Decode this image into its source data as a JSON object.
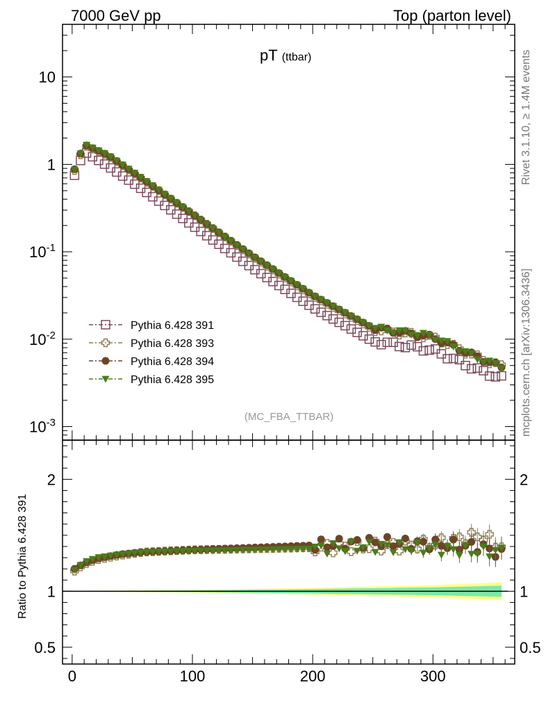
{
  "header": {
    "left": "7000 GeV pp",
    "right": "Top (parton level)"
  },
  "side_text": {
    "rivet": "Rivet 3.1.10, ≥ 1.4M events",
    "mcplots": "mcplots.cern.ch [arXiv:1306.3436]"
  },
  "chart_data": [
    {
      "type": "line",
      "title": "pT",
      "title_sub": "(ttbar)",
      "watermark": "(MC_FBA_TTBAR)",
      "xlim": [
        -8,
        368
      ],
      "ylim": [
        0.0007,
        40
      ],
      "yscale": "log",
      "y_tick_labels": [
        "10^-3",
        "10^-2",
        "10^-1",
        "1",
        "10"
      ],
      "legend_placement": "lower-left",
      "colors": {
        "391": "#7b4a5e",
        "393": "#8f7b52",
        "394": "#6b4528",
        "395": "#4c7c1a"
      },
      "series": [
        {
          "name": "Pythia 6.428 391",
          "marker": "open-square",
          "x": [
            2,
            10,
            30,
            60,
            100,
            150,
            200,
            250,
            300,
            340,
            357
          ],
          "y": [
            0.75,
            1.4,
            0.95,
            0.5,
            0.2,
            0.065,
            0.023,
            0.0095,
            0.0075,
            0.0043,
            0.0036
          ]
        },
        {
          "name": "Pythia 6.428 393",
          "marker": "open-cross",
          "x": [
            2,
            10,
            30,
            60,
            100,
            150,
            200,
            250,
            300,
            340,
            357
          ],
          "y": [
            0.85,
            1.65,
            1.25,
            0.65,
            0.27,
            0.088,
            0.031,
            0.013,
            0.0105,
            0.006,
            0.0049
          ]
        },
        {
          "name": "Pythia 6.428 394",
          "marker": "filled-circle",
          "x": [
            2,
            10,
            30,
            60,
            100,
            150,
            200,
            250,
            300,
            340,
            357
          ],
          "y": [
            0.88,
            1.7,
            1.27,
            0.66,
            0.27,
            0.09,
            0.032,
            0.0135,
            0.0105,
            0.006,
            0.0048
          ]
        },
        {
          "name": "Pythia 6.428 395",
          "marker": "filled-triangle-down",
          "x": [
            2,
            10,
            30,
            60,
            100,
            150,
            200,
            250,
            300,
            340,
            357
          ],
          "y": [
            0.87,
            1.72,
            1.28,
            0.67,
            0.27,
            0.089,
            0.032,
            0.0135,
            0.0108,
            0.0058,
            0.0049
          ]
        }
      ]
    },
    {
      "type": "line",
      "ylabel": "Ratio to Pythia 6.428 391",
      "xlim": [
        -8,
        368
      ],
      "ylim": [
        0.35,
        2.35
      ],
      "x_ticks": [
        0,
        100,
        200,
        300
      ],
      "y_ticks": [
        0.5,
        1,
        2
      ],
      "reference": 1,
      "band_outer_color": "#ffff88",
      "band_inner_color": "#7fe8a8",
      "band": {
        "x": [
          0,
          100,
          200,
          300,
          357
        ],
        "outer_half_width": [
          0.003,
          0.012,
          0.03,
          0.055,
          0.08
        ],
        "inner_half_width": [
          0.002,
          0.008,
          0.02,
          0.035,
          0.05
        ]
      },
      "series": [
        {
          "name": "Pythia 6.428 393",
          "x": [
            2,
            10,
            20,
            40,
            60,
            100,
            150,
            200,
            250,
            300,
            340,
            357
          ],
          "y": [
            1.18,
            1.24,
            1.28,
            1.32,
            1.35,
            1.37,
            1.38,
            1.39,
            1.4,
            1.42,
            1.5,
            1.4
          ]
        },
        {
          "name": "Pythia 6.428 394",
          "x": [
            2,
            10,
            20,
            40,
            60,
            100,
            150,
            200,
            250,
            300,
            340,
            357
          ],
          "y": [
            1.2,
            1.25,
            1.29,
            1.33,
            1.35,
            1.37,
            1.39,
            1.41,
            1.44,
            1.42,
            1.4,
            1.33
          ]
        },
        {
          "name": "Pythia 6.428 395",
          "x": [
            2,
            10,
            20,
            40,
            60,
            100,
            150,
            200,
            250,
            300,
            340,
            357
          ],
          "y": [
            1.19,
            1.26,
            1.3,
            1.33,
            1.35,
            1.36,
            1.37,
            1.38,
            1.4,
            1.38,
            1.35,
            1.36
          ]
        }
      ]
    }
  ]
}
